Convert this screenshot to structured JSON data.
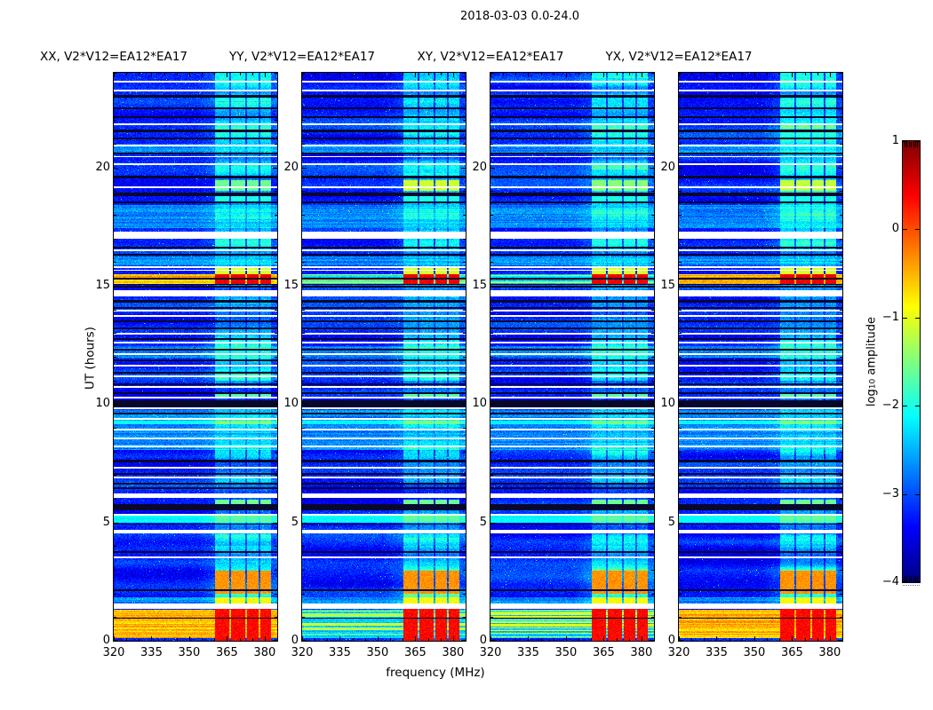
{
  "title": "2018-03-03 0.0-24.0",
  "axes": {
    "xlabel": "frequency (MHz)",
    "ylabel": "UT (hours)"
  },
  "colorbar": {
    "label_prefix": "log",
    "label_sub": "10",
    "label_suffix": " amplitude",
    "tick_labels": [
      "1",
      "0",
      "−1",
      "−2",
      "−3",
      "−4"
    ]
  },
  "chart_data": {
    "type": "heatmap",
    "title": "2018-03-03 0.0-24.0",
    "xlabel": "frequency (MHz)",
    "ylabel": "UT (hours)",
    "colorbar_label": "log10 amplitude",
    "colormap": "jet",
    "x_range_mhz": [
      320,
      385
    ],
    "x_ticks": [
      320,
      335,
      350,
      365,
      380
    ],
    "x_minor_step_mhz": 5,
    "y_range_hours": [
      0,
      24
    ],
    "y_ticks": [
      0,
      5,
      10,
      15,
      20
    ],
    "y_minor_step_hours": 1,
    "value_range_log10": [
      -4,
      1
    ],
    "colorbar_ticks": [
      1,
      0,
      -1,
      -2,
      -3,
      -4
    ],
    "panels": [
      {
        "label": "XX, V2*V12=EA12*EA17",
        "pol": "XX",
        "broadband_scale": 1.0,
        "seed": 11
      },
      {
        "label": "YY, V2*V12=EA12*EA17",
        "pol": "YY",
        "broadband_scale": 0.3,
        "seed": 23
      },
      {
        "label": "XY, V2*V12=EA12*EA17",
        "pol": "XY",
        "broadband_scale": 0.42,
        "seed": 37
      },
      {
        "label": "YX, V2*V12=EA12*EA17",
        "pol": "YX",
        "broadband_scale": 0.85,
        "seed": 51
      }
    ],
    "background_level_log10": -3.4,
    "rfi_band": {
      "faint_range_mhz": [
        353,
        385
      ],
      "columns_mhz": [
        [
          360.3,
          366.0
        ],
        [
          366.8,
          372.3
        ],
        [
          373.1,
          377.5
        ],
        [
          378.2,
          382.5
        ]
      ],
      "blocks": [
        {
          "t": [
            0.0,
            1.35
          ],
          "level": 0.35
        },
        {
          "t": [
            1.58,
            1.82
          ],
          "level": -0.9
        },
        {
          "t": [
            2.0,
            2.95
          ],
          "level": -0.35
        },
        {
          "t": [
            5.75,
            5.95
          ],
          "level": -1.6
        },
        {
          "t": [
            10.3,
            10.42
          ],
          "level": -1.7
        },
        {
          "t": [
            15.02,
            15.47
          ],
          "level": 0.45
        },
        {
          "t": [
            15.5,
            15.78
          ],
          "level": -1.05
        },
        {
          "t": [
            18.55,
            18.82
          ],
          "level": -2.0
        },
        {
          "t": [
            19.0,
            19.45
          ],
          "level": -1.45,
          "panel_levels": [
            -1.6,
            -1.1,
            -1.45,
            -1.15
          ]
        }
      ]
    },
    "broadband_bands": [
      {
        "t": [
          0.12,
          1.32
        ],
        "level": -0.55,
        "panel_scales": [
          1.0,
          0.3,
          0.42,
          0.85
        ]
      },
      {
        "t": [
          15.02,
          15.47
        ],
        "level": -0.55,
        "panel_scales": [
          1.0,
          0.55,
          0.6,
          0.9
        ]
      }
    ],
    "bright_noisy_rows_t": [
      [
        17.45,
        18.4
      ],
      [
        15.85,
        16.25
      ],
      [
        11.95,
        12.45
      ],
      [
        8.05,
        9.75
      ],
      [
        1.58,
        1.85
      ],
      [
        20.63,
        21.0
      ]
    ],
    "bright_solid_rows_t": [
      [
        4.98,
        5.28
      ],
      [
        9.15,
        9.3
      ]
    ],
    "white_gaps_t": [
      [
        23.6,
        23.68
      ],
      [
        23.22,
        23.3
      ],
      [
        21.78,
        21.85
      ],
      [
        20.88,
        20.95
      ],
      [
        20.42,
        20.49
      ],
      [
        20.11,
        20.18
      ],
      [
        19.13,
        19.2
      ],
      [
        17.0,
        17.28
      ],
      [
        16.48,
        16.55
      ],
      [
        15.76,
        15.82
      ],
      [
        15.62,
        15.68
      ],
      [
        14.56,
        14.82
      ],
      [
        13.93,
        14.0
      ],
      [
        13.68,
        13.75
      ],
      [
        12.93,
        13.0
      ],
      [
        12.58,
        12.65
      ],
      [
        12.08,
        12.15
      ],
      [
        11.58,
        11.65
      ],
      [
        11.13,
        11.2
      ],
      [
        10.68,
        10.75
      ],
      [
        10.23,
        10.3
      ],
      [
        9.78,
        9.85
      ],
      [
        9.33,
        9.4
      ],
      [
        8.88,
        8.95
      ],
      [
        8.53,
        8.6
      ],
      [
        8.18,
        8.25
      ],
      [
        7.28,
        7.35
      ],
      [
        6.88,
        6.95
      ],
      [
        6.02,
        6.22
      ],
      [
        5.28,
        5.35
      ],
      [
        4.52,
        4.68
      ],
      [
        3.48,
        3.55
      ],
      [
        1.36,
        1.56
      ]
    ],
    "dark_rows_t": [
      [
        22.95,
        23.05
      ],
      [
        22.45,
        22.55
      ],
      [
        22.1,
        22.18
      ],
      [
        21.5,
        21.6
      ],
      [
        21.2,
        21.28
      ],
      [
        20.55,
        20.63
      ],
      [
        19.55,
        19.65
      ],
      [
        18.8,
        18.92
      ],
      [
        18.5,
        18.58
      ],
      [
        16.58,
        16.66
      ],
      [
        16.26,
        16.34
      ],
      [
        15.28,
        15.34
      ],
      [
        15.03,
        15.09
      ],
      [
        14.93,
        14.99
      ],
      [
        14.3,
        14.4
      ],
      [
        14.02,
        14.09
      ],
      [
        13.45,
        13.55
      ],
      [
        13.15,
        13.22
      ],
      [
        12.7,
        12.78
      ],
      [
        12.25,
        12.33
      ],
      [
        11.8,
        11.88
      ],
      [
        11.3,
        11.38
      ],
      [
        10.8,
        10.88
      ],
      [
        10.42,
        10.5
      ],
      [
        9.85,
        10.15
      ],
      [
        9.55,
        9.63
      ],
      [
        7.55,
        7.65
      ],
      [
        7.0,
        7.08
      ],
      [
        6.6,
        6.68
      ],
      [
        6.4,
        6.48
      ],
      [
        6.1,
        6.17
      ],
      [
        5.5,
        5.78
      ],
      [
        5.32,
        5.38
      ],
      [
        4.9,
        4.96
      ],
      [
        3.7,
        3.78
      ],
      [
        2.1,
        2.18
      ],
      [
        0.92,
        0.98
      ]
    ]
  }
}
